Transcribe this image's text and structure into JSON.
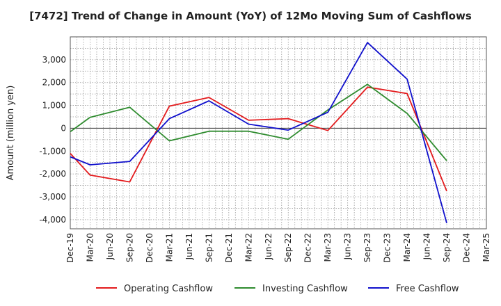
{
  "chart_data": {
    "type": "line",
    "title": "[7472]  Trend of Change in Amount (YoY) of 12Mo Moving Sum of Cashflows",
    "xlabel": "",
    "ylabel": "Amount (million yen)",
    "categories": [
      "Dec-19",
      "Mar-20",
      "Jun-20",
      "Sep-20",
      "Dec-20",
      "Mar-21",
      "Jun-21",
      "Sep-21",
      "Dec-21",
      "Mar-22",
      "Jun-22",
      "Sep-22",
      "Dec-22",
      "Mar-23",
      "Jun-23",
      "Sep-23",
      "Dec-23",
      "Mar-24",
      "Jun-24",
      "Sep-24",
      "Dec-24",
      "Mar-25"
    ],
    "yticks": [
      -4000,
      -3000,
      -2000,
      -1000,
      0,
      1000,
      2000,
      3000
    ],
    "ytick_labels": [
      "-4,000",
      "-3,000",
      "-2,000",
      "-1,000",
      "0",
      "1,000",
      "2,000",
      "3,000"
    ],
    "ylim": [
      -4400,
      4000
    ],
    "grid": true,
    "series": [
      {
        "name": "Operating Cashflow",
        "color": "#e31a1c",
        "values": [
          -1100,
          -2050,
          null,
          -2350,
          null,
          970,
          null,
          1350,
          null,
          350,
          null,
          420,
          null,
          -100,
          null,
          1800,
          null,
          1520,
          null,
          -2750,
          null,
          null
        ]
      },
      {
        "name": "Investing Cashflow",
        "color": "#2e8b2e",
        "values": [
          -150,
          480,
          null,
          920,
          null,
          -550,
          null,
          -130,
          null,
          -130,
          null,
          -480,
          null,
          800,
          null,
          1920,
          null,
          650,
          null,
          -1420,
          null,
          null
        ]
      },
      {
        "name": "Free Cashflow",
        "color": "#1010cc",
        "values": [
          -1250,
          -1600,
          null,
          -1450,
          null,
          420,
          null,
          1200,
          null,
          180,
          null,
          -80,
          null,
          700,
          null,
          3750,
          null,
          2150,
          null,
          -4150,
          null,
          null
        ]
      }
    ]
  }
}
